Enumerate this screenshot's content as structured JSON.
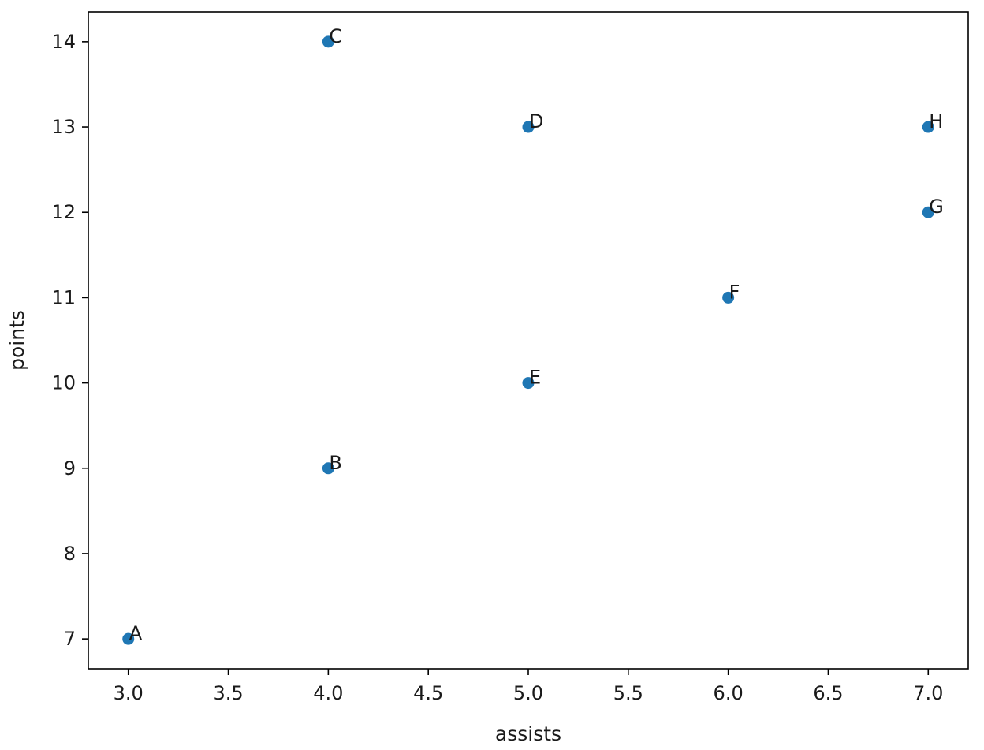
{
  "chart_data": {
    "type": "scatter",
    "title": "",
    "xlabel": "assists",
    "ylabel": "points",
    "xlim": [
      2.8,
      7.2
    ],
    "ylim": [
      6.65,
      14.35
    ],
    "xticks": [
      3.0,
      3.5,
      4.0,
      4.5,
      5.0,
      5.5,
      6.0,
      6.5,
      7.0
    ],
    "xtick_labels": [
      "3.0",
      "3.5",
      "4.0",
      "4.5",
      "5.0",
      "5.5",
      "6.0",
      "6.5",
      "7.0"
    ],
    "yticks": [
      7,
      8,
      9,
      10,
      11,
      12,
      13,
      14
    ],
    "ytick_labels": [
      "7",
      "8",
      "9",
      "10",
      "11",
      "12",
      "13",
      "14"
    ],
    "grid": false,
    "marker_color": "#1f77b4",
    "points": [
      {
        "label": "A",
        "x": 3,
        "y": 7
      },
      {
        "label": "B",
        "x": 4,
        "y": 9
      },
      {
        "label": "C",
        "x": 4,
        "y": 14
      },
      {
        "label": "D",
        "x": 5,
        "y": 13
      },
      {
        "label": "E",
        "x": 5,
        "y": 10
      },
      {
        "label": "F",
        "x": 6,
        "y": 11
      },
      {
        "label": "G",
        "x": 7,
        "y": 12
      },
      {
        "label": "H",
        "x": 7,
        "y": 13
      }
    ]
  }
}
